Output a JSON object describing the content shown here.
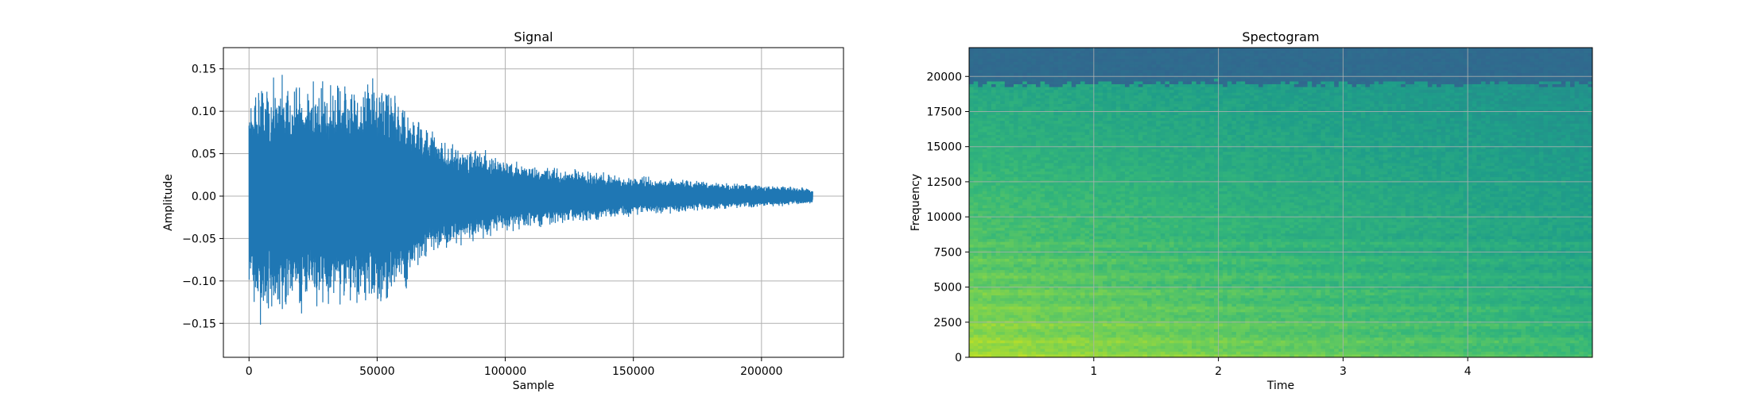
{
  "chart_data": [
    {
      "type": "line",
      "title": "Signal",
      "xlabel": "Sample",
      "ylabel": "Amplitude",
      "xlim": [
        -10000,
        232000
      ],
      "ylim": [
        -0.19,
        0.175
      ],
      "xticks": [
        0,
        50000,
        100000,
        150000,
        200000
      ],
      "xtick_labels": [
        "0",
        "50000",
        "100000",
        "150000",
        "200000"
      ],
      "yticks": [
        -0.15,
        -0.1,
        -0.05,
        0.0,
        0.05,
        0.1,
        0.15
      ],
      "ytick_labels": [
        "−0.15",
        "−0.10",
        "−0.05",
        "0.00",
        "0.05",
        "0.10",
        "0.15"
      ],
      "grid": true,
      "series": [
        {
          "color": "#1f77b4",
          "envelope": {
            "x": [
              0,
              5000,
              10000,
              20000,
              30000,
              40000,
              50000,
              55000,
              60000,
              65000,
              70000,
              75000,
              80000,
              90000,
              100000,
              110000,
              120000,
              130000,
              140000,
              150000,
              160000,
              170000,
              180000,
              190000,
              200000,
              210000,
              220000
            ],
            "upper": [
              0.12,
              0.14,
              0.145,
              0.14,
              0.135,
              0.14,
              0.145,
              0.135,
              0.11,
              0.1,
              0.085,
              0.075,
              0.065,
              0.057,
              0.045,
              0.04,
              0.035,
              0.032,
              0.028,
              0.025,
              0.022,
              0.02,
              0.018,
              0.016,
              0.015,
              0.013,
              0.01
            ],
            "lower": [
              -0.12,
              -0.16,
              -0.15,
              -0.14,
              -0.14,
              -0.135,
              -0.14,
              -0.125,
              -0.12,
              -0.1,
              -0.08,
              -0.07,
              -0.06,
              -0.055,
              -0.045,
              -0.04,
              -0.035,
              -0.032,
              -0.028,
              -0.024,
              -0.022,
              -0.019,
              -0.017,
              -0.015,
              -0.014,
              -0.012,
              -0.01
            ]
          }
        }
      ]
    },
    {
      "type": "heatmap",
      "title": "Spectogram",
      "xlabel": "Time",
      "ylabel": "Frequency",
      "xlim": [
        0,
        5.0
      ],
      "ylim": [
        0,
        22050
      ],
      "xticks": [
        1,
        2,
        3,
        4
      ],
      "xtick_labels": [
        "1",
        "2",
        "3",
        "4"
      ],
      "yticks": [
        0,
        2500,
        5000,
        7500,
        10000,
        12500,
        15000,
        17500,
        20000
      ],
      "ytick_labels": [
        "0",
        "2500",
        "5000",
        "7500",
        "10000",
        "12500",
        "15000",
        "17500",
        "20000"
      ],
      "grid": true,
      "colormap": "viridis",
      "cutoff_frequency": 19500
    }
  ]
}
